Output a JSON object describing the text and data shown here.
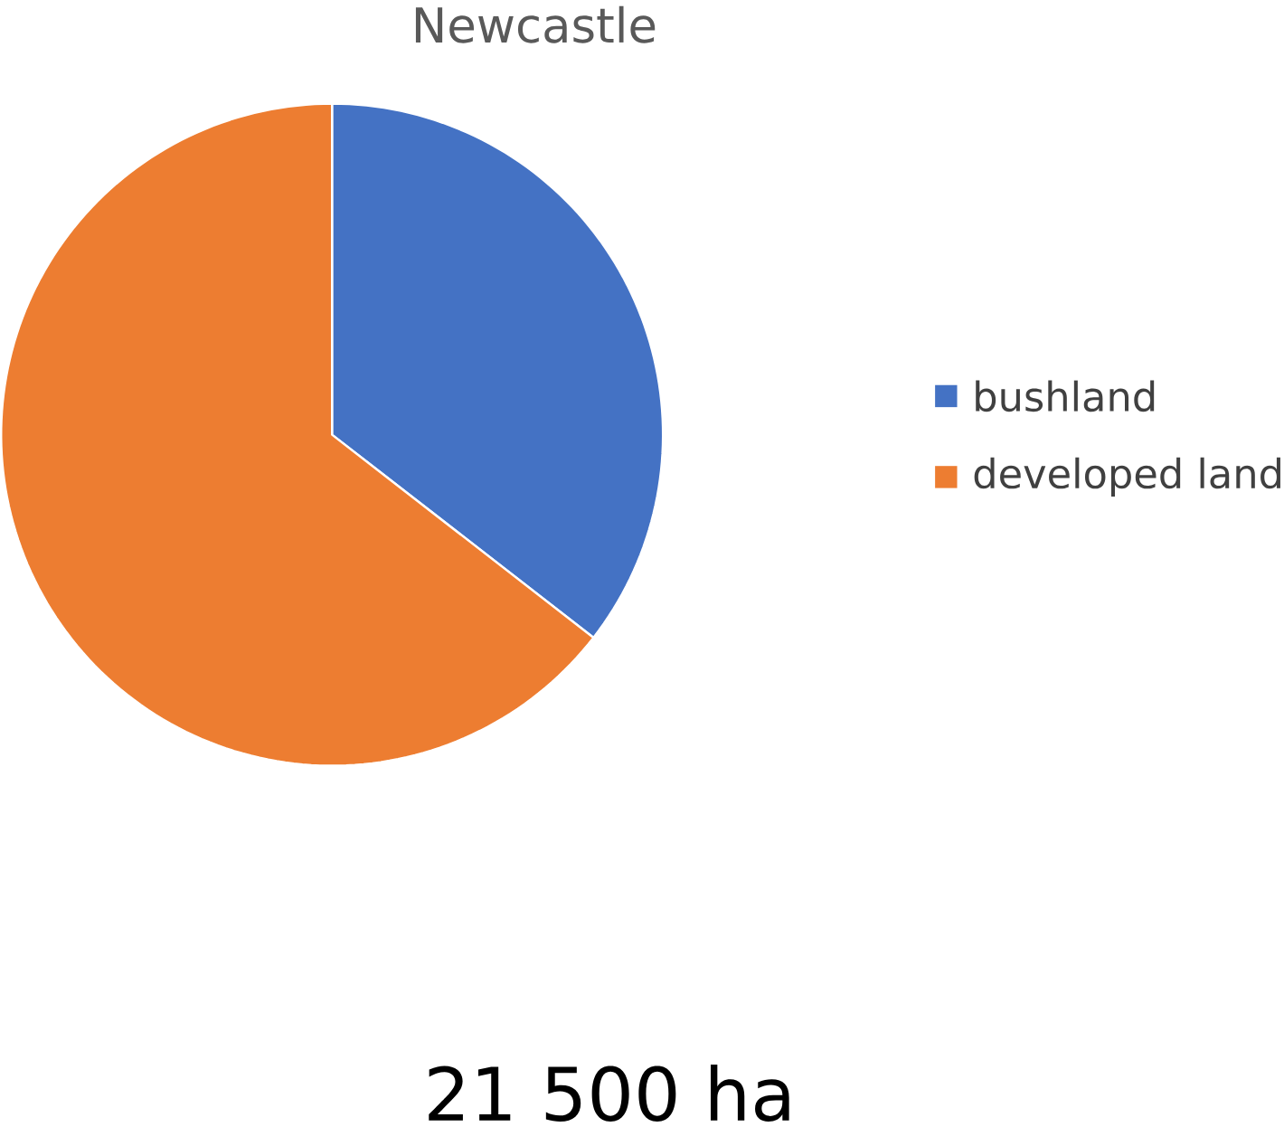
{
  "chart_data": {
    "type": "pie",
    "title": "Newcastle",
    "categories": [
      "bushland",
      "developed land"
    ],
    "values": [
      35.5,
      64.5
    ],
    "colors": [
      "#4472c4",
      "#ed7d31"
    ],
    "legend": "right",
    "annotations": [
      "21 500 ha"
    ]
  }
}
